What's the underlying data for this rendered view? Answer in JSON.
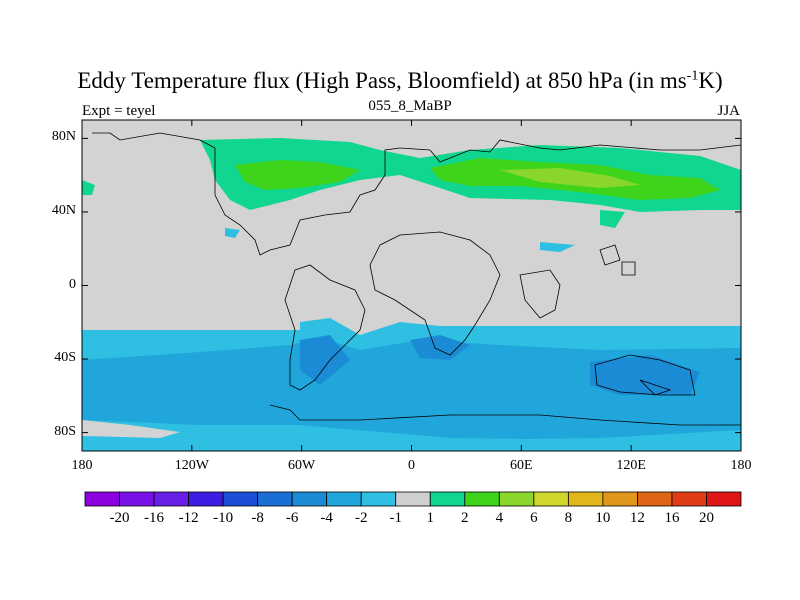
{
  "title": {
    "main": "Eddy Temperature flux (High Pass, Bloomfield) at 850 hPa (in ms",
    "superscript": "-1",
    "suffix": "K)"
  },
  "subtitles": {
    "left": "Expt = teyel",
    "center": "055_8_MaBP",
    "right": "JJA"
  },
  "map": {
    "projection": "cylindrical equidistant",
    "lon_range": [
      -180,
      180
    ],
    "lat_range": [
      -90,
      90
    ],
    "land_color": "#d3d3d3"
  },
  "y_axis": {
    "ticks": [
      {
        "lat": 80,
        "label": "80N"
      },
      {
        "lat": 40,
        "label": "40N"
      },
      {
        "lat": 0,
        "label": "0"
      },
      {
        "lat": -40,
        "label": "40S"
      },
      {
        "lat": -80,
        "label": "80S"
      }
    ]
  },
  "x_axis": {
    "ticks": [
      {
        "lon": -180,
        "label": "180"
      },
      {
        "lon": -120,
        "label": "120W"
      },
      {
        "lon": -60,
        "label": "60W"
      },
      {
        "lon": 0,
        "label": "0"
      },
      {
        "lon": 60,
        "label": "60E"
      },
      {
        "lon": 120,
        "label": "120E"
      },
      {
        "lon": 180,
        "label": "180"
      }
    ]
  },
  "colorbar": {
    "colors": [
      "#8d00e0",
      "#7a10e8",
      "#6a1fe8",
      "#3c1ee3",
      "#1a4fd6",
      "#1a6ed4",
      "#1b8bd6",
      "#21a6dc",
      "#2ebfe3",
      "#cfcfcf",
      "#10d690",
      "#3ed41c",
      "#8ad62c",
      "#cfd62c",
      "#e0b61a",
      "#e0961a",
      "#e06416",
      "#e03c16",
      "#e01616"
    ],
    "labels": [
      "-20",
      "-16",
      "-12",
      "-10",
      "-8",
      "-6",
      "-4",
      "-2",
      "-1",
      "1",
      "2",
      "4",
      "6",
      "8",
      "10",
      "12",
      "16",
      "20"
    ]
  },
  "field_colors": {
    "green_light": "#10d690",
    "green_mid": "#3ed41c",
    "green_yellow": "#8ad62c",
    "blue_light": "#2ebfe3",
    "blue_mid": "#21a6dc",
    "blue_dark": "#1b8bd6",
    "blue_deeper": "#1a6ed4"
  }
}
